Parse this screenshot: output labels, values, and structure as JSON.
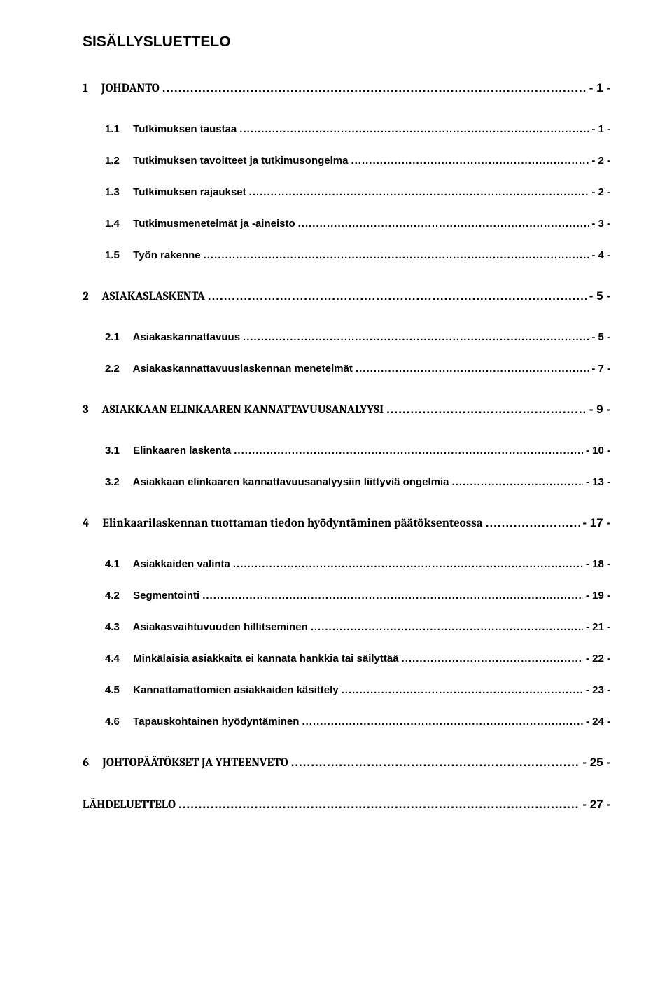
{
  "title": "SISÄLLYSLUETTELO",
  "toc": [
    {
      "level": 1,
      "num": "1",
      "text": "JOHDANTO",
      "page": "- 1 -"
    },
    {
      "level": 2,
      "num": "1.1",
      "text": "Tutkimuksen taustaa",
      "page": "- 1 -"
    },
    {
      "level": 2,
      "num": "1.2",
      "text": "Tutkimuksen tavoitteet ja tutkimusongelma",
      "page": "- 2 -"
    },
    {
      "level": 2,
      "num": "1.3",
      "text": "Tutkimuksen rajaukset",
      "page": "- 2 -"
    },
    {
      "level": 2,
      "num": "1.4",
      "text": "Tutkimusmenetelmät ja -aineisto",
      "page": "- 3 -"
    },
    {
      "level": 2,
      "num": "1.5",
      "text": "Työn rakenne",
      "page": "- 4 -"
    },
    {
      "level": 1,
      "num": "2",
      "text": "ASIAKASLASKENTA",
      "page": "- 5 -"
    },
    {
      "level": 2,
      "num": "2.1",
      "text": "Asiakaskannattavuus",
      "page": "- 5 -"
    },
    {
      "level": 2,
      "num": "2.2",
      "text": "Asiakaskannattavuuslaskennan menetelmät",
      "page": "- 7 -"
    },
    {
      "level": 1,
      "num": "3",
      "text": "ASIAKKAAN ELINKAAREN KANNATTAVUUSANALYYSI",
      "page": "- 9 -"
    },
    {
      "level": 2,
      "num": "3.1",
      "text": "Elinkaaren laskenta",
      "page": "- 10 -"
    },
    {
      "level": 2,
      "num": "3.2",
      "text": "Asiakkaan elinkaaren kannattavuusanalyysiin liittyviä ongelmia",
      "page": "- 13 -"
    },
    {
      "level": 1,
      "num": "4",
      "text": "Elinkaarilaskennan tuottaman tiedon hyödyntäminen  päätöksenteossa",
      "page": "- 17 -"
    },
    {
      "level": 2,
      "num": "4.1",
      "text": "Asiakkaiden valinta",
      "page": "- 18 -"
    },
    {
      "level": 2,
      "num": "4.2",
      "text": "Segmentointi",
      "page": "- 19 -"
    },
    {
      "level": 2,
      "num": "4.3",
      "text": "Asiakasvaihtuvuuden hillitseminen",
      "page": "- 21 -"
    },
    {
      "level": 2,
      "num": "4.4",
      "text": "Minkälaisia asiakkaita ei kannata hankkia tai säilyttää",
      "page": "- 22 -"
    },
    {
      "level": 2,
      "num": "4.5",
      "text": "Kannattamattomien asiakkaiden käsittely",
      "page": "- 23 -"
    },
    {
      "level": 2,
      "num": "4.6",
      "text": "Tapauskohtainen hyödyntäminen",
      "page": "- 24 -"
    },
    {
      "level": 1,
      "num": "6",
      "text": "JOHTOPÄÄTÖKSET JA YHTEENVETO",
      "page": "- 25 -"
    },
    {
      "level": 1,
      "num": "",
      "text": "LÄHDELUETTELO",
      "page": "- 27 -",
      "last": true
    }
  ]
}
